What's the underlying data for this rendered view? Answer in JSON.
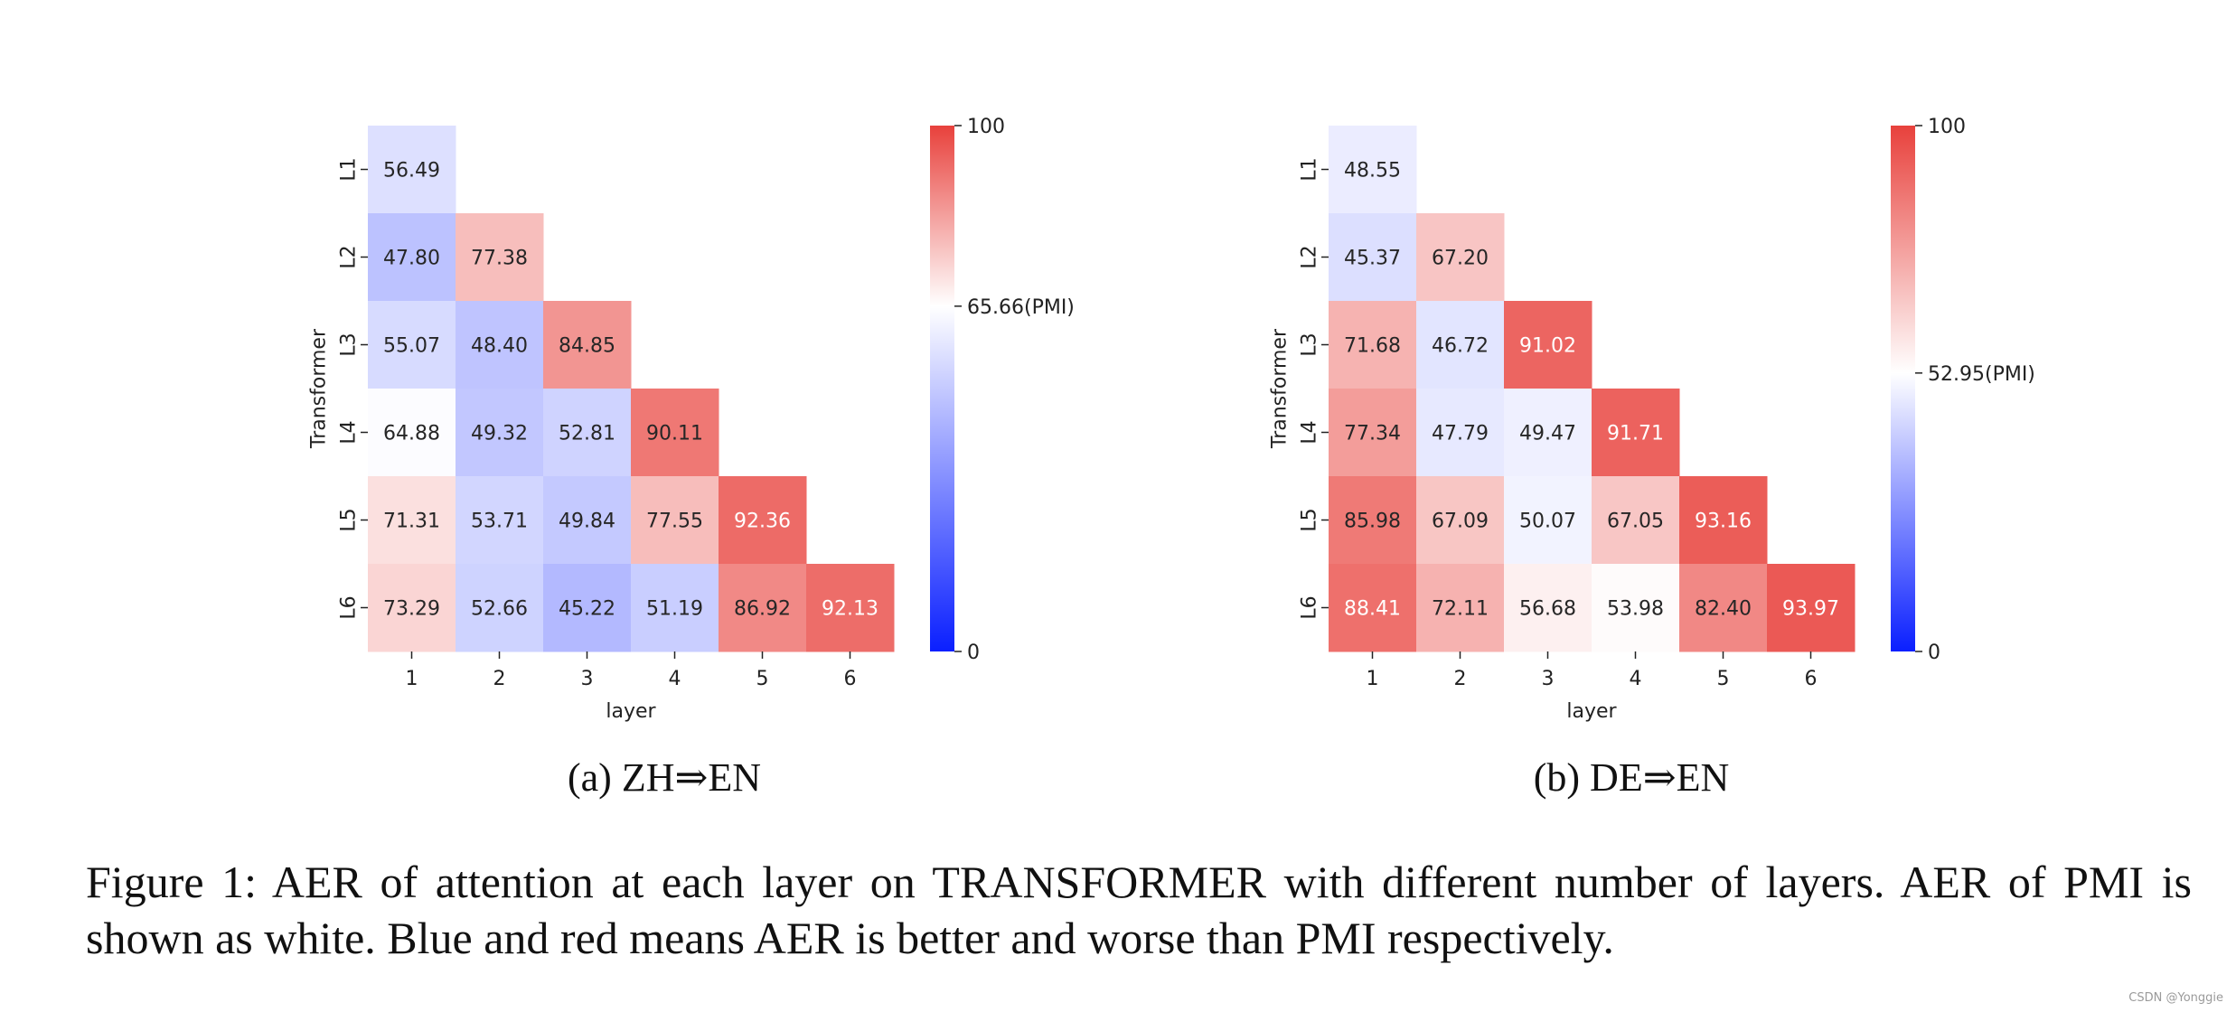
{
  "chart_data": [
    {
      "type": "heatmap",
      "subtitle": "(a) ZH⇒EN",
      "xlabel": "layer",
      "ylabel": "Transformer",
      "x_ticks": [
        "1",
        "2",
        "3",
        "4",
        "5",
        "6"
      ],
      "y_ticks": [
        "L1",
        "L2",
        "L3",
        "L4",
        "L5",
        "L6"
      ],
      "values": [
        [
          56.49,
          null,
          null,
          null,
          null,
          null
        ],
        [
          47.8,
          77.38,
          null,
          null,
          null,
          null
        ],
        [
          55.07,
          48.4,
          84.85,
          null,
          null,
          null
        ],
        [
          64.88,
          49.32,
          52.81,
          90.11,
          null,
          null
        ],
        [
          71.31,
          53.71,
          49.84,
          77.55,
          92.36,
          null
        ],
        [
          73.29,
          52.66,
          45.22,
          51.19,
          86.92,
          92.13
        ]
      ],
      "labels": [
        [
          "56.49",
          "",
          "",
          "",
          "",
          ""
        ],
        [
          "47.80",
          "77.38",
          "",
          "",
          "",
          ""
        ],
        [
          "55.07",
          "48.40",
          "84.85",
          "",
          "",
          ""
        ],
        [
          "64.88",
          "49.32",
          "52.81",
          "90.11",
          "",
          ""
        ],
        [
          "71.31",
          "53.71",
          "49.84",
          "77.55",
          "92.36",
          ""
        ],
        [
          "73.29",
          "52.66",
          "45.22",
          "51.19",
          "86.92",
          "92.13"
        ]
      ],
      "colorbar": {
        "min": 0,
        "max": 100,
        "center": 65.66,
        "ticks": [
          {
            "value": 100,
            "label": "100"
          },
          {
            "value": 65.66,
            "label": "65.66(PMI)"
          },
          {
            "value": 0,
            "label": "0"
          }
        ],
        "colors": {
          "low": "#0a1fff",
          "mid": "#ffffff",
          "high": "#e8413c"
        }
      }
    },
    {
      "type": "heatmap",
      "subtitle": "(b) DE⇒EN",
      "xlabel": "layer",
      "ylabel": "Transformer",
      "x_ticks": [
        "1",
        "2",
        "3",
        "4",
        "5",
        "6"
      ],
      "y_ticks": [
        "L1",
        "L2",
        "L3",
        "L4",
        "L5",
        "L6"
      ],
      "values": [
        [
          48.55,
          null,
          null,
          null,
          null,
          null
        ],
        [
          45.37,
          67.2,
          null,
          null,
          null,
          null
        ],
        [
          71.68,
          46.72,
          91.02,
          null,
          null,
          null
        ],
        [
          77.34,
          47.79,
          49.47,
          91.71,
          null,
          null
        ],
        [
          85.98,
          67.09,
          50.07,
          67.05,
          93.16,
          null
        ],
        [
          88.41,
          72.11,
          56.68,
          53.98,
          82.4,
          93.97
        ]
      ],
      "labels": [
        [
          "48.55",
          "",
          "",
          "",
          "",
          ""
        ],
        [
          "45.37",
          "67.20",
          "",
          "",
          "",
          ""
        ],
        [
          "71.68",
          "46.72",
          "91.02",
          "",
          "",
          ""
        ],
        [
          "77.34",
          "47.79",
          "49.47",
          "91.71",
          "",
          ""
        ],
        [
          "85.98",
          "67.09",
          "50.07",
          "67.05",
          "93.16",
          ""
        ],
        [
          "88.41",
          "72.11",
          "56.68",
          "53.98",
          "82.40",
          "93.97"
        ]
      ],
      "colorbar": {
        "min": 0,
        "max": 100,
        "center": 52.95,
        "ticks": [
          {
            "value": 100,
            "label": "100"
          },
          {
            "value": 52.95,
            "label": "52.95(PMI)"
          },
          {
            "value": 0,
            "label": "0"
          }
        ],
        "colors": {
          "low": "#0a1fff",
          "mid": "#ffffff",
          "high": "#e8413c"
        }
      }
    }
  ],
  "caption": {
    "prefix": "Figure 1:  AER of attention at each layer on T",
    "smallcaps": "RANSFORMER",
    "suffix": " with different number of layers.  AER of PMI is shown as white. Blue and red means AER is better and worse than PMI respectively."
  },
  "watermark": "CSDN @Yonggie"
}
